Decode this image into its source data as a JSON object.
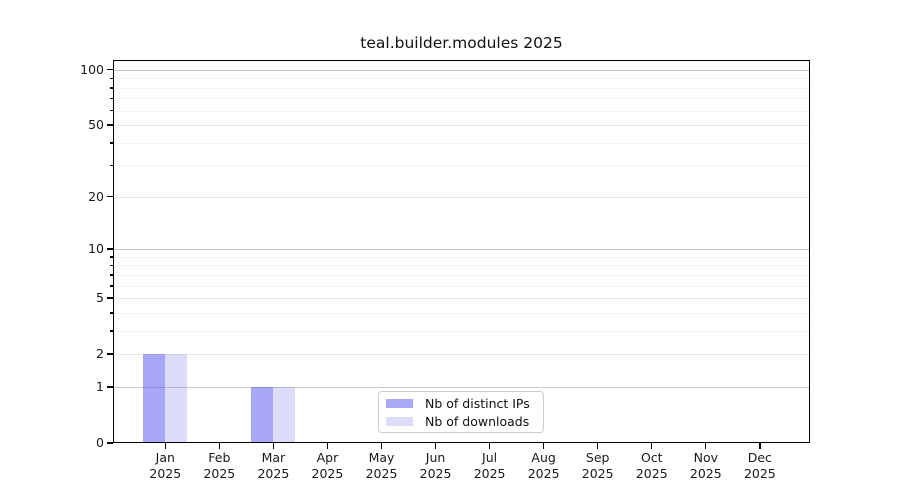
{
  "title": "teal.builder.modules 2025",
  "chart_data": {
    "type": "bar",
    "title": "teal.builder.modules 2025",
    "scale": "log1p",
    "grid": true,
    "legend_position": "lower center",
    "xlabel": "",
    "ylabel": "",
    "ylim": [
      0,
      113
    ],
    "categories": [
      "Jan",
      "Feb",
      "Mar",
      "Apr",
      "May",
      "Jun",
      "Jul",
      "Aug",
      "Sep",
      "Oct",
      "Nov",
      "Dec"
    ],
    "x_year_line": "2025",
    "yticks_labeled": [
      0,
      1,
      2,
      5,
      10,
      20,
      50,
      100
    ],
    "yticks_decade": [
      1,
      10,
      100
    ],
    "yticks_minor": [
      3,
      4,
      6,
      7,
      8,
      9,
      30,
      40,
      60,
      70,
      80,
      90
    ],
    "series": [
      {
        "name": "Nb of distinct IPs",
        "color": "rgba(80,80,238,0.5)",
        "legend_color": "#a9a9f6",
        "values": [
          2,
          0,
          1,
          0,
          0,
          0,
          0,
          0,
          0,
          0,
          0,
          0
        ]
      },
      {
        "name": "Nb of downloads",
        "color": "rgba(140,140,235,0.3)",
        "legend_color": "#dcdcf9",
        "values": [
          2,
          0,
          1,
          0,
          0,
          0,
          0,
          0,
          0,
          0,
          0,
          0
        ]
      }
    ]
  },
  "colors": {
    "grid_decade": "#c9c9c9",
    "grid_mid": "#e9e9e9",
    "grid_minor": "#f4f4f4",
    "spine": "#000000",
    "text": "#1a1a1a",
    "background": "#ffffff"
  }
}
